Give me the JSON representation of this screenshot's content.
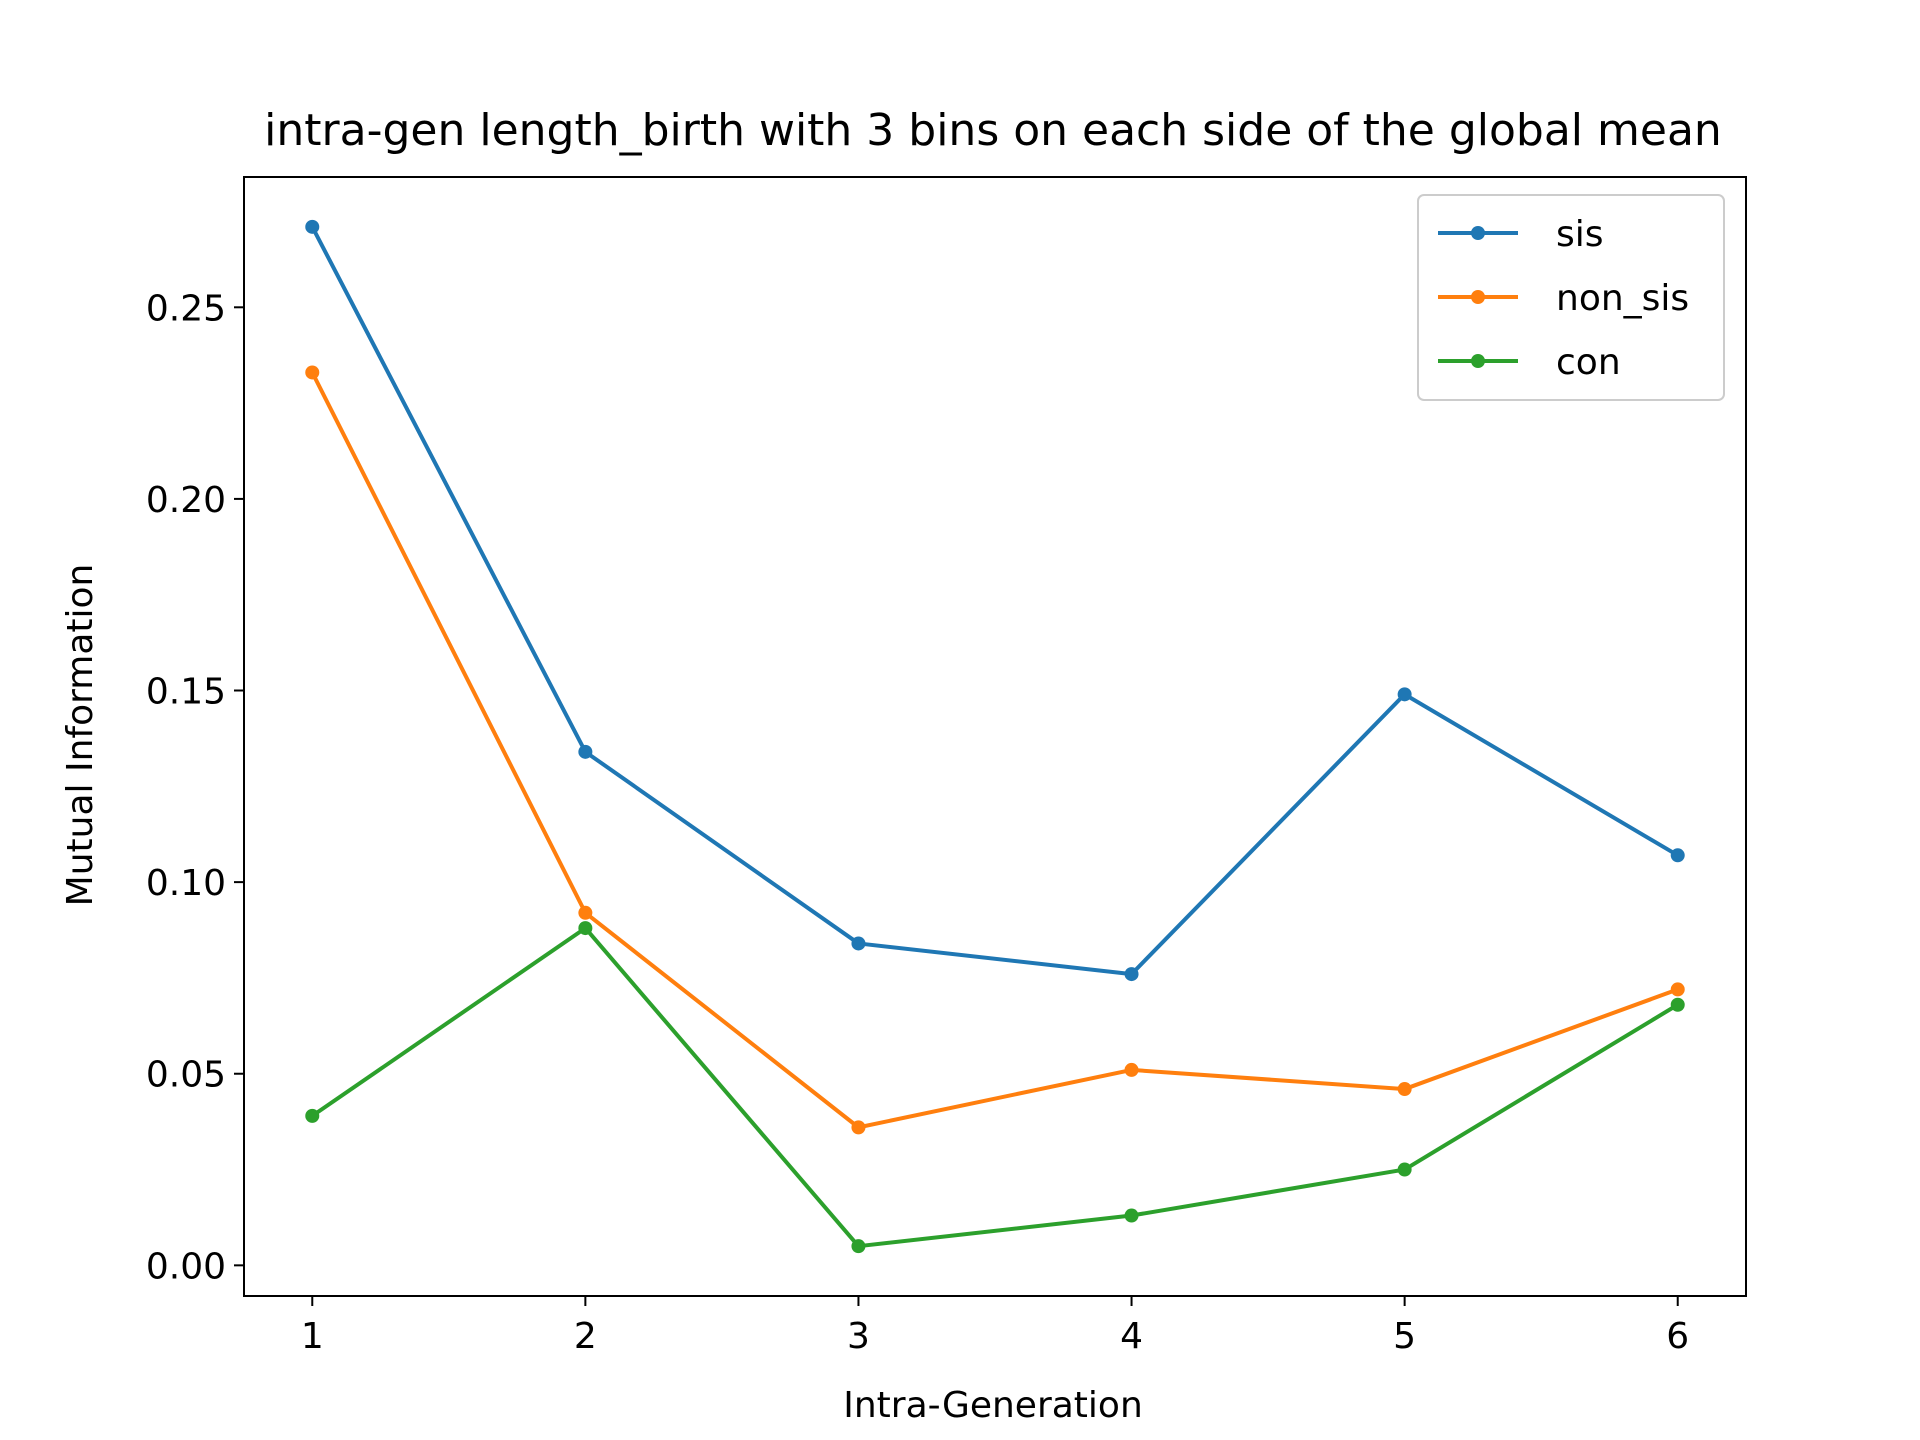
{
  "chart_data": {
    "type": "line",
    "title": "intra-gen length_birth with 3 bins on each side of the global mean",
    "xlabel": "Intra-Generation",
    "ylabel": "Mutual Information",
    "x": [
      1,
      2,
      3,
      4,
      5,
      6
    ],
    "xlim": [
      0.75,
      6.25
    ],
    "ylim": [
      -0.008,
      0.284
    ],
    "x_ticks": [
      1,
      2,
      3,
      4,
      5,
      6
    ],
    "y_ticks": [
      0.0,
      0.05,
      0.1,
      0.15,
      0.2,
      0.25
    ],
    "y_tick_labels": [
      "0.00",
      "0.05",
      "0.10",
      "0.15",
      "0.20",
      "0.25"
    ],
    "grid": false,
    "legend_position": "top-right",
    "series": [
      {
        "name": "sis",
        "color": "#1f77b4",
        "values": [
          0.271,
          0.134,
          0.084,
          0.076,
          0.149,
          0.107
        ]
      },
      {
        "name": "non_sis",
        "color": "#ff7f0e",
        "values": [
          0.233,
          0.092,
          0.036,
          0.051,
          0.046,
          0.072
        ]
      },
      {
        "name": "con",
        "color": "#2ca02c",
        "values": [
          0.039,
          0.088,
          0.005,
          0.013,
          0.025,
          0.068
        ]
      }
    ]
  }
}
